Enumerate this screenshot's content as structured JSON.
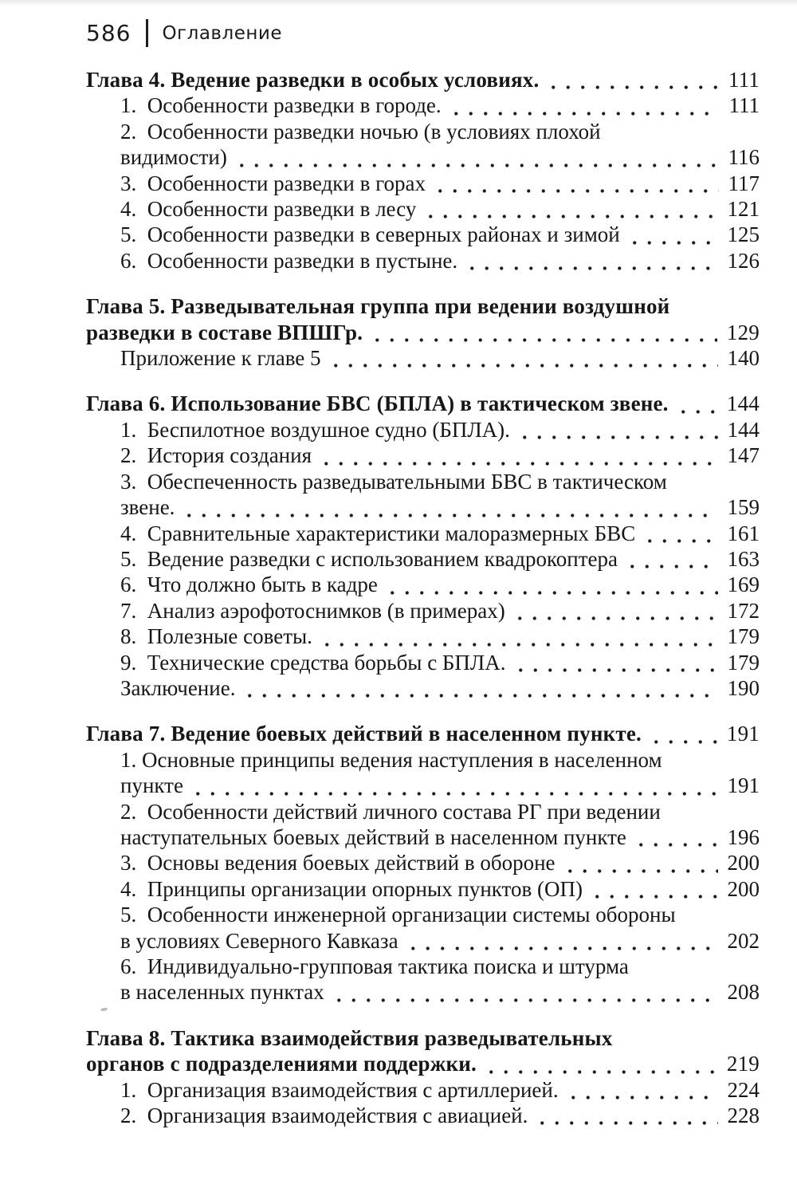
{
  "header": {
    "page_number": "586",
    "title": "Оглавление"
  },
  "toc": {
    "lines": [
      {
        "text": "Глава 4. Ведение разведки в особых условиях.",
        "cls": "chapter",
        "page": "111"
      },
      {
        "text": "1.  Особенности разведки в городе.",
        "cls": "item",
        "page": "111"
      },
      {
        "text": "2.  Особенности разведки ночью (в условиях плохой",
        "cls": "item"
      },
      {
        "text": "видимости)",
        "cls": "item-cont",
        "page": "116"
      },
      {
        "text": "3.  Особенности разведки в горах",
        "cls": "item",
        "page": "117"
      },
      {
        "text": "4.  Особенности разведки в лесу",
        "cls": "item",
        "page": "121"
      },
      {
        "text": "5.  Особенности разведки в северных районах и зимой",
        "cls": "item",
        "page": "125"
      },
      {
        "text": "6.  Особенности разведки в пустыне.",
        "cls": "item",
        "page": "126"
      },
      {
        "text": "Глава 5. Разведывательная группа при ведении воздушной",
        "cls": "chapter",
        "gap": true
      },
      {
        "text": "разведки в составе ВПШГр.",
        "cls": "chapter-cont",
        "page": "129"
      },
      {
        "text": "Приложение к главе 5",
        "cls": "item",
        "page": "140"
      },
      {
        "text": "Глава 6. Использование БВС (БПЛА) в тактическом звене.",
        "cls": "chapter",
        "page": "144",
        "gap": true
      },
      {
        "text": "1.  Беспилотное воздушное судно (БПЛА).",
        "cls": "item",
        "page": "144"
      },
      {
        "text": "2.  История создания",
        "cls": "item",
        "page": "147"
      },
      {
        "text": "3.  Обеспеченность разведывательными БВС в тактическом",
        "cls": "item"
      },
      {
        "text": "звене.",
        "cls": "item-cont",
        "page": "159"
      },
      {
        "text": "4.  Сравнительные характеристики малоразмерных БВС",
        "cls": "item",
        "page": "161"
      },
      {
        "text": "5.  Ведение разведки с использованием квадрокоптера",
        "cls": "item",
        "page": "163"
      },
      {
        "text": "6.  Что должно быть в кадре",
        "cls": "item",
        "page": "169"
      },
      {
        "text": "7.  Анализ аэрофотоснимков (в примерах)",
        "cls": "item",
        "page": "172"
      },
      {
        "text": "8.  Полезные советы.",
        "cls": "item",
        "page": "179"
      },
      {
        "text": "9.  Технические средства борьбы с БПЛА.",
        "cls": "item",
        "page": "179"
      },
      {
        "text": "Заключение.",
        "cls": "item",
        "page": "190"
      },
      {
        "text": "Глава 7. Ведение боевых действий в населенном пункте.",
        "cls": "chapter",
        "page": "191",
        "gap": true
      },
      {
        "text": "1. Основные принципы ведения наступления в населенном",
        "cls": "item"
      },
      {
        "text": "пункте",
        "cls": "item-cont",
        "page": "191"
      },
      {
        "text": "2.  Особенности действий личного состава РГ при ведении",
        "cls": "item"
      },
      {
        "text": "наступательных боевых действий в населенном пункте",
        "cls": "item-cont",
        "page": "196"
      },
      {
        "text": "3.  Основы ведения боевых действий в обороне",
        "cls": "item",
        "page": "200"
      },
      {
        "text": "4.  Принципы организации опорных пунктов (ОП)",
        "cls": "item",
        "page": "200"
      },
      {
        "text": "5.  Особенности инженерной организации системы обороны",
        "cls": "item"
      },
      {
        "text": "в условиях Северного Кавказа",
        "cls": "item-cont",
        "page": "202"
      },
      {
        "text": "6.  Индивидуально-групповая тактика поиска и штурма",
        "cls": "item"
      },
      {
        "text": "в населенных пунктах",
        "cls": "item-cont",
        "page": "208"
      },
      {
        "text": "Глава 8. Тактика взаимодействия разведывательных",
        "cls": "chapter",
        "gap": true
      },
      {
        "text": "органов с подразделениями поддержки.",
        "cls": "chapter-cont",
        "page": "219"
      },
      {
        "text": "1.  Организация взаимодействия с артиллерией.",
        "cls": "item",
        "page": "224"
      },
      {
        "text": "2.  Организация взаимодействия с авиацией.",
        "cls": "item",
        "page": "228"
      }
    ]
  }
}
